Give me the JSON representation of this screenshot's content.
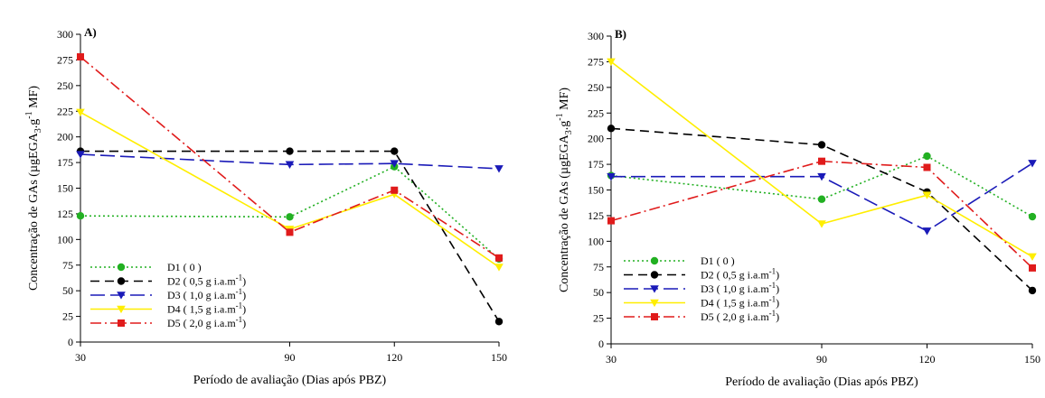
{
  "chart_data": [
    {
      "type": "line",
      "panel_label": "A)",
      "xlabel": "Período de avaliação (Dias após PBZ)",
      "ylabel_prefix": "Concentração de GAs (µgEGA",
      "ylabel_sub": "3",
      "ylabel_mid": ".g",
      "ylabel_sup": "-1",
      "ylabel_suffix": " MF)",
      "x": [
        30,
        90,
        120,
        150
      ],
      "xticks": [
        "30",
        "90",
        "120",
        "150"
      ],
      "xlim": [
        30,
        150
      ],
      "ylim": [
        0,
        300
      ],
      "yticks": [
        0,
        25,
        50,
        75,
        100,
        125,
        150,
        175,
        200,
        225,
        250,
        275,
        300
      ],
      "legend_position": "bottom-left",
      "grid": false,
      "series": [
        {
          "name": "D1",
          "unit": "( 0 )",
          "color": "#22b022",
          "dash": "2,3",
          "marker": "circle",
          "values": [
            123,
            122,
            171,
            81
          ]
        },
        {
          "name": "D2",
          "unit": "( 0,5 g i.a.m",
          "sup": "-1",
          "close": ")",
          "color": "#000000",
          "dash": "10,6",
          "marker": "circle",
          "values": [
            186,
            186,
            186,
            20
          ]
        },
        {
          "name": "D3",
          "unit": "( 1,0 g i.a.m",
          "sup": "-1",
          "close": ")",
          "color": "#1a1ab8",
          "dash": "16,6",
          "marker": "triangle",
          "values": [
            183,
            173,
            174,
            169
          ]
        },
        {
          "name": "D4",
          "unit": "( 1,5 g i.a.m",
          "sup": "-1",
          "close": ")",
          "color": "#ffee00",
          "dash": "",
          "marker": "triangle",
          "values": [
            224,
            110,
            144,
            73
          ]
        },
        {
          "name": "D5",
          "unit": "( 2,0 g i.a.m",
          "sup": "-1",
          "close": ")",
          "color": "#e01b1b",
          "dash": "12,4,2,4",
          "marker": "square",
          "values": [
            278,
            107,
            148,
            82
          ]
        }
      ]
    },
    {
      "type": "line",
      "panel_label": "B)",
      "xlabel": "Período de avaliação (Dias após PBZ)",
      "ylabel_prefix": "Concentração de GAs (µgEGA",
      "ylabel_sub": "3",
      "ylabel_mid": ".g",
      "ylabel_sup": "-1",
      "ylabel_suffix": " MF)",
      "x": [
        30,
        90,
        120,
        150
      ],
      "xticks": [
        "30",
        "90",
        "120",
        "150"
      ],
      "xlim": [
        30,
        150
      ],
      "ylim": [
        0,
        300
      ],
      "yticks": [
        0,
        25,
        50,
        75,
        100,
        125,
        150,
        175,
        200,
        225,
        250,
        275,
        300
      ],
      "legend_position": "bottom-left",
      "grid": false,
      "series": [
        {
          "name": "D1",
          "unit": "( 0 )",
          "color": "#22b022",
          "dash": "2,3",
          "marker": "circle",
          "values": [
            164,
            141,
            183,
            124
          ]
        },
        {
          "name": "D2",
          "unit": "( 0,5 g i.a.m",
          "sup": "-1",
          "close": ")",
          "color": "#000000",
          "dash": "10,6",
          "marker": "circle",
          "values": [
            210,
            194,
            148,
            52
          ]
        },
        {
          "name": "D3",
          "unit": "( 1,0 g i.a.m",
          "sup": "-1",
          "close": ")",
          "color": "#1a1ab8",
          "dash": "16,6",
          "marker": "triangle",
          "values": [
            163,
            163,
            110,
            176
          ]
        },
        {
          "name": "D4",
          "unit": "( 1,5 g i.a.m",
          "sup": "-1",
          "close": ")",
          "color": "#ffee00",
          "dash": "",
          "marker": "triangle",
          "values": [
            275,
            117,
            145,
            85
          ]
        },
        {
          "name": "D5",
          "unit": "( 2,0 g i.a.m",
          "sup": "-1",
          "close": ")",
          "color": "#e01b1b",
          "dash": "12,4,2,4",
          "marker": "square",
          "values": [
            120,
            178,
            172,
            74
          ]
        }
      ]
    }
  ]
}
